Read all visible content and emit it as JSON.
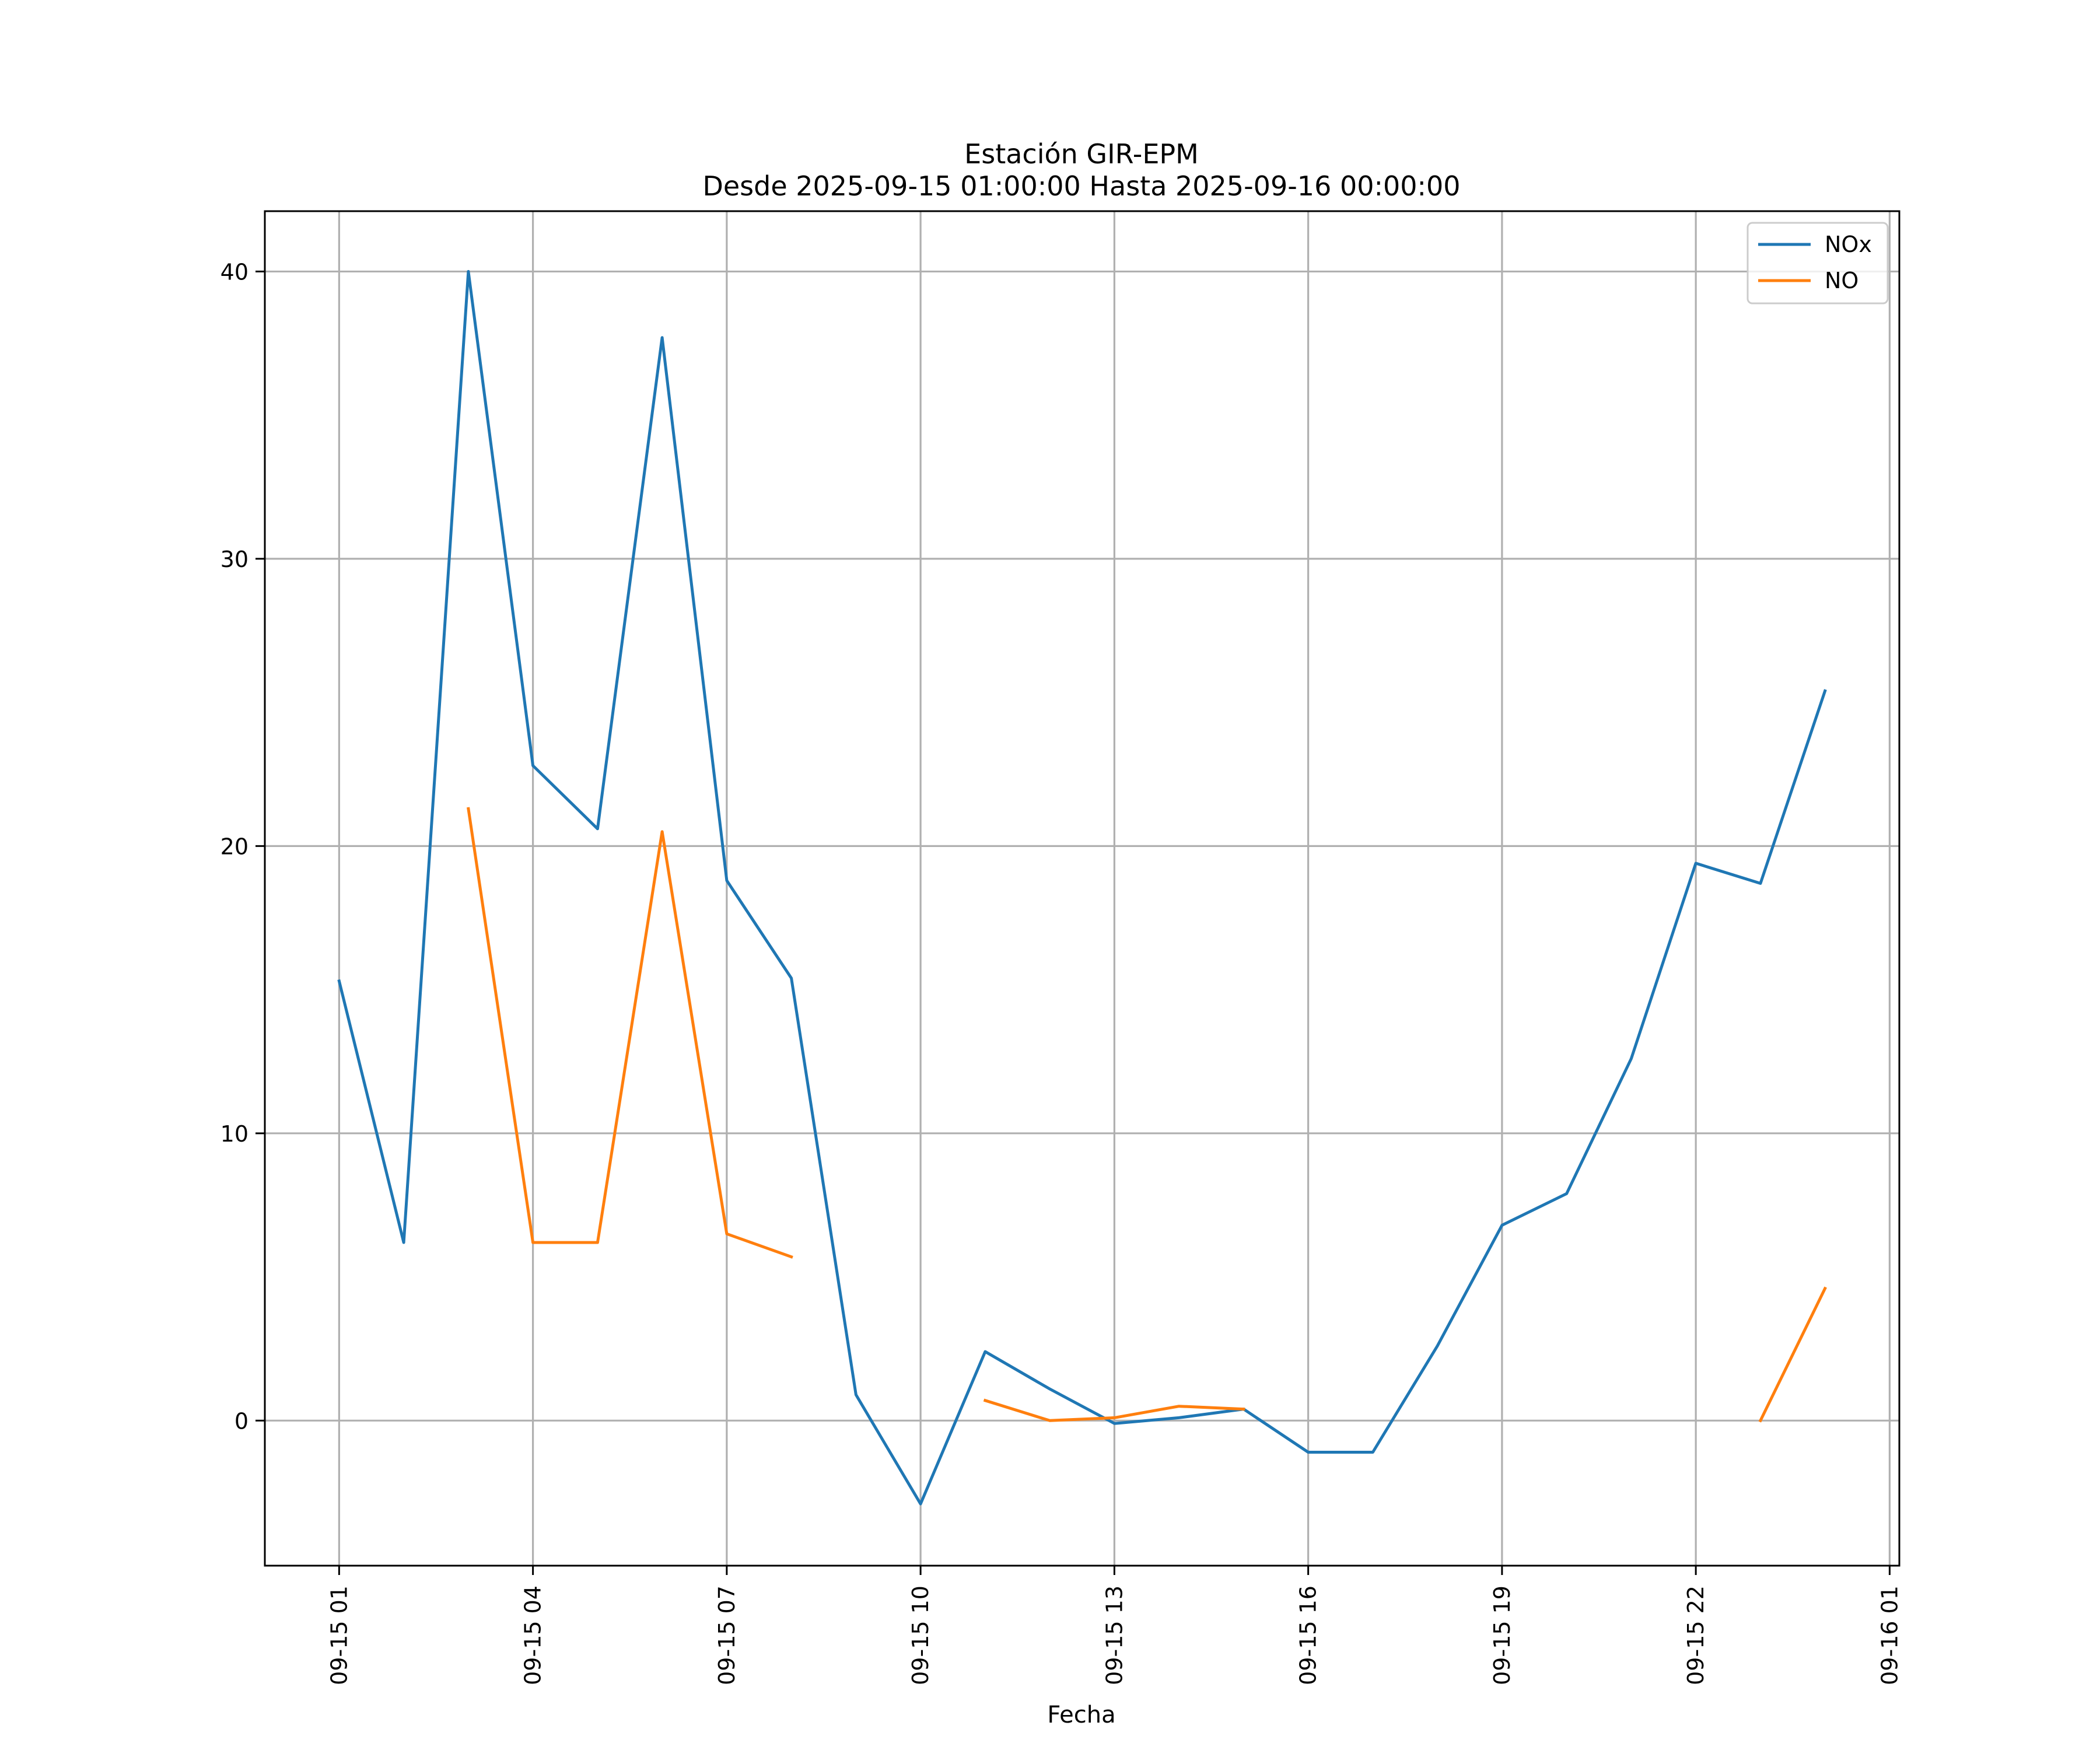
{
  "chart_data": {
    "type": "line",
    "title": "Estación GIR-EPM",
    "subtitle": "Desde 2025-09-15 01:00:00 Hasta 2025-09-16 00:00:00",
    "xlabel": "Fecha",
    "ylabel": "",
    "x": [
      "2025-09-15 01:00",
      "2025-09-15 02:00",
      "2025-09-15 03:00",
      "2025-09-15 04:00",
      "2025-09-15 05:00",
      "2025-09-15 06:00",
      "2025-09-15 07:00",
      "2025-09-15 08:00",
      "2025-09-15 09:00",
      "2025-09-15 10:00",
      "2025-09-15 11:00",
      "2025-09-15 12:00",
      "2025-09-15 13:00",
      "2025-09-15 14:00",
      "2025-09-15 15:00",
      "2025-09-15 16:00",
      "2025-09-15 17:00",
      "2025-09-15 18:00",
      "2025-09-15 19:00",
      "2025-09-15 20:00",
      "2025-09-15 21:00",
      "2025-09-15 22:00",
      "2025-09-15 23:00",
      "2025-09-16 00:00"
    ],
    "series": [
      {
        "name": "NOx",
        "color": "#1f77b4",
        "values": [
          15.3,
          6.2,
          40.0,
          22.8,
          20.6,
          37.7,
          18.8,
          15.4,
          0.9,
          -2.9,
          2.4,
          1.1,
          -0.1,
          0.1,
          0.4,
          -1.1,
          -1.1,
          2.6,
          6.8,
          7.9,
          12.6,
          19.4,
          18.7,
          25.4
        ]
      },
      {
        "name": "NO",
        "color": "#ff7f0e",
        "values": [
          null,
          null,
          21.3,
          6.2,
          6.2,
          20.5,
          6.5,
          5.7,
          null,
          null,
          0.7,
          0.0,
          0.1,
          0.5,
          0.4,
          null,
          null,
          null,
          null,
          null,
          null,
          null,
          0.0,
          4.6
        ]
      }
    ],
    "xticks": [
      "09-15 01",
      "09-15 04",
      "09-15 07",
      "09-15 10",
      "09-15 13",
      "09-15 16",
      "09-15 19",
      "09-15 22",
      "09-16 01"
    ],
    "yticks": [
      0,
      10,
      20,
      30,
      40
    ],
    "xlim": [
      "2025-09-14 23:51",
      "2025-09-16 01:09"
    ],
    "ylim": [
      -5.05,
      42.1
    ],
    "grid": true,
    "legend": "top-right"
  }
}
